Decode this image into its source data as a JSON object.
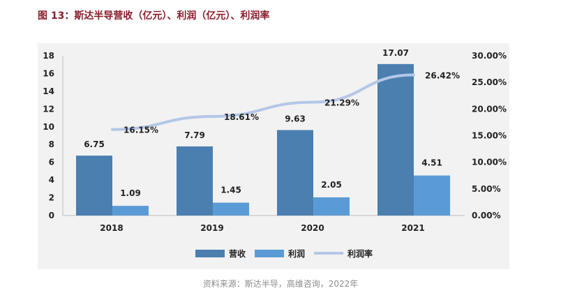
{
  "title": "图 13：斯达半导营收（亿元）、利润（亿元）、利润率",
  "source": "资料来源：斯达半导，高维咨询，2022年",
  "colors": {
    "revenue": "#4a7fb0",
    "profit": "#5b9bd5",
    "margin": "#b4c7e7",
    "title": "#8a1c2b",
    "background": "#f2f2f2"
  },
  "chart_data": {
    "type": "bar",
    "categories": [
      "2018",
      "2019",
      "2020",
      "2021"
    ],
    "series": [
      {
        "name": "营收",
        "type": "bar",
        "axis": "left",
        "values": [
          6.75,
          7.79,
          9.63,
          17.07
        ],
        "labels": [
          "6.75",
          "7.79",
          "9.63",
          "17.07"
        ]
      },
      {
        "name": "利润",
        "type": "bar",
        "axis": "left",
        "values": [
          1.09,
          1.45,
          2.05,
          4.51
        ],
        "labels": [
          "1.09",
          "1.45",
          "2.05",
          "4.51"
        ]
      },
      {
        "name": "利润率",
        "type": "line",
        "axis": "right",
        "values": [
          16.15,
          18.61,
          21.29,
          26.42
        ],
        "labels": [
          "16.15%",
          "18.61%",
          "21.29%",
          "26.42%"
        ]
      }
    ],
    "y_left": {
      "range": [
        0,
        18
      ],
      "ticks": [
        "0",
        "2",
        "4",
        "6",
        "8",
        "10",
        "12",
        "14",
        "16",
        "18"
      ]
    },
    "y_right": {
      "range": [
        0,
        30
      ],
      "ticks": [
        "0.00%",
        "5.00%",
        "10.00%",
        "15.00%",
        "20.00%",
        "25.00%",
        "30.00%"
      ]
    },
    "legend": {
      "position": "bottom-center",
      "items": [
        "营收",
        "利润",
        "利润率"
      ]
    },
    "grid": false
  }
}
